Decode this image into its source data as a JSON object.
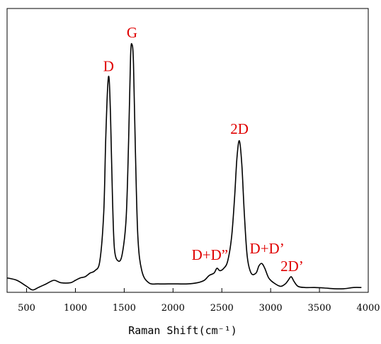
{
  "chart_data": {
    "type": "line",
    "title": "",
    "xlabel": "Raman Shift(cm⁻¹)",
    "ylabel": "",
    "xlim": [
      300,
      4000
    ],
    "ylim": [
      -0.03,
      1.15
    ],
    "xticks": [
      500,
      1000,
      1500,
      2000,
      2500,
      3000,
      3500,
      4000
    ],
    "yticks_visible": false,
    "grid": false,
    "series": [
      {
        "x": [
          300,
          400,
          500,
          560,
          620,
          700,
          780,
          850,
          950,
          1000,
          1050,
          1100,
          1150,
          1200,
          1250,
          1290,
          1310,
          1330,
          1345,
          1360,
          1380,
          1400,
          1440,
          1480,
          1520,
          1545,
          1565,
          1580,
          1595,
          1615,
          1640,
          1680,
          1750,
          1850,
          1950,
          2050,
          2150,
          2250,
          2320,
          2370,
          2420,
          2450,
          2480,
          2520,
          2560,
          2600,
          2630,
          2655,
          2680,
          2705,
          2730,
          2760,
          2800,
          2850,
          2880,
          2910,
          2940,
          2980,
          3030,
          3100,
          3150,
          3180,
          3210,
          3240,
          3280,
          3350,
          3450,
          3550,
          3650,
          3750,
          3850,
          3930
        ],
        "y": [
          0.03,
          0.02,
          -0.005,
          -0.02,
          -0.01,
          0.005,
          0.02,
          0.01,
          0.01,
          0.02,
          0.03,
          0.035,
          0.05,
          0.06,
          0.1,
          0.3,
          0.6,
          0.82,
          0.86,
          0.7,
          0.36,
          0.15,
          0.1,
          0.13,
          0.28,
          0.6,
          0.95,
          1.0,
          0.92,
          0.55,
          0.2,
          0.06,
          0.01,
          0.005,
          0.005,
          0.005,
          0.005,
          0.01,
          0.02,
          0.04,
          0.05,
          0.07,
          0.06,
          0.07,
          0.1,
          0.2,
          0.36,
          0.53,
          0.6,
          0.5,
          0.3,
          0.12,
          0.05,
          0.05,
          0.08,
          0.09,
          0.07,
          0.03,
          0.01,
          -0.005,
          0.005,
          0.02,
          0.035,
          0.015,
          -0.005,
          -0.01,
          -0.01,
          -0.012,
          -0.015,
          -0.015,
          -0.01,
          -0.01
        ]
      }
    ],
    "annotations": [
      {
        "text": "D",
        "x": 1340,
        "y": 0.86
      },
      {
        "text": "G",
        "x": 1580,
        "y": 1.0
      },
      {
        "text": "2D",
        "x": 2680,
        "y": 0.6
      },
      {
        "text": "D+D”",
        "x": 2450,
        "y": 0.07
      },
      {
        "text": "D+D’",
        "x": 2920,
        "y": 0.09
      },
      {
        "text": "2D’",
        "x": 3220,
        "y": 0.035
      }
    ]
  }
}
